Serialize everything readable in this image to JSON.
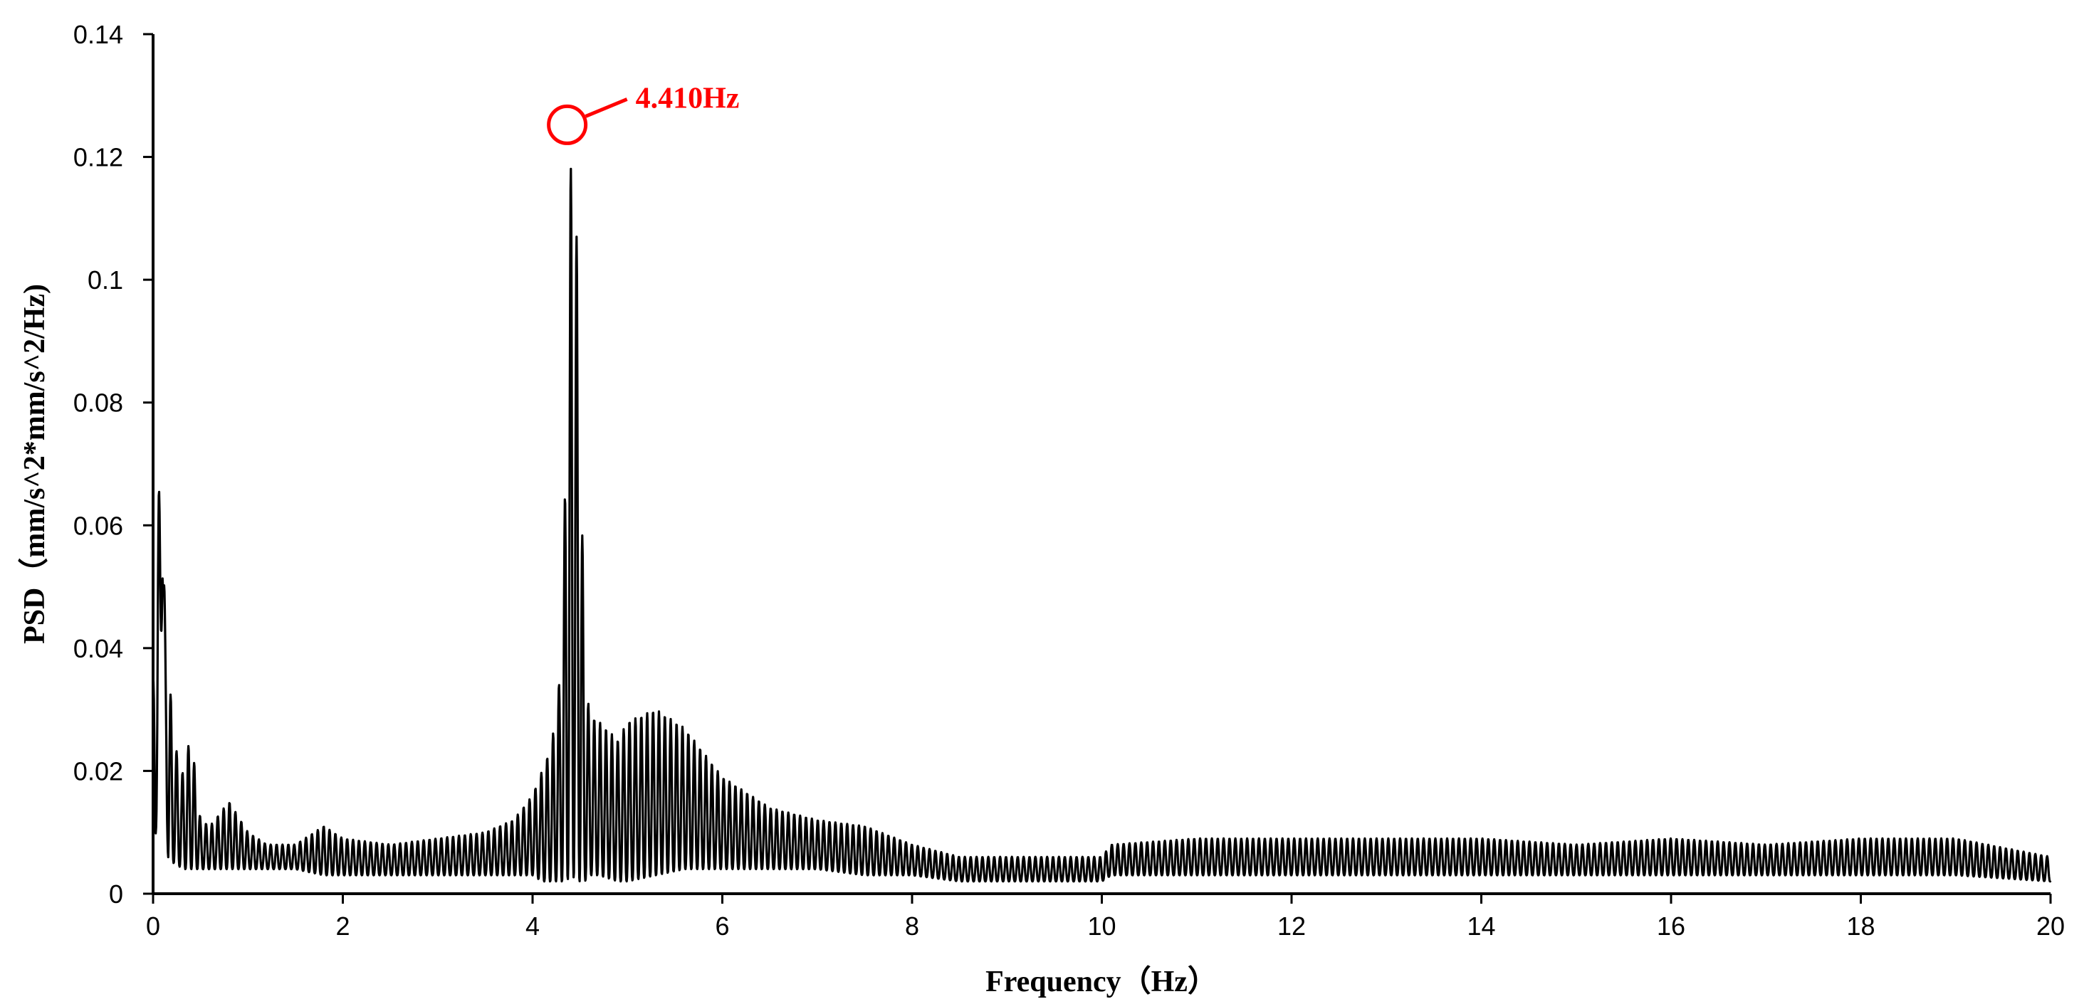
{
  "chart_data": {
    "type": "line",
    "title": "",
    "xlabel": "Frequency（Hz）",
    "ylabel": "PSD（mm/s^2*mm/s^2/Hz)",
    "xlim": [
      0,
      20
    ],
    "ylim": [
      0,
      0.14
    ],
    "x_ticks": [
      "0",
      "2",
      "4",
      "6",
      "8",
      "10",
      "12",
      "14",
      "16",
      "18",
      "20"
    ],
    "y_ticks": [
      "0",
      "0.02",
      "0.04",
      "0.06",
      "0.08",
      "0.1",
      "0.12",
      "0.14"
    ],
    "grid": false,
    "legend": "none",
    "series": [
      {
        "color": "#000000",
        "envelope": {
          "x": [
            0,
            0.05,
            0.1,
            0.13,
            0.16,
            0.2,
            0.25,
            0.3,
            0.4,
            0.5,
            0.6,
            0.8,
            1.0,
            1.2,
            1.5,
            1.8,
            2.0,
            2.5,
            3.0,
            3.5,
            3.8,
            4.0,
            4.1,
            4.2,
            4.3,
            4.35,
            4.41,
            4.47,
            4.55,
            4.6,
            4.7,
            4.9,
            5.0,
            5.3,
            5.6,
            6.0,
            6.5,
            7.0,
            7.5,
            8.0,
            8.5,
            9.0,
            9.5,
            10.0,
            10.1,
            11.0,
            12.0,
            13.0,
            14.0,
            15.0,
            16.0,
            17.0,
            18.0,
            19.0,
            20.0
          ],
          "upper": [
            0.034,
            0.064,
            0.071,
            0.04,
            0.04,
            0.028,
            0.023,
            0.019,
            0.026,
            0.012,
            0.011,
            0.015,
            0.01,
            0.008,
            0.008,
            0.011,
            0.009,
            0.008,
            0.009,
            0.01,
            0.012,
            0.016,
            0.02,
            0.024,
            0.037,
            0.071,
            0.125,
            0.105,
            0.037,
            0.029,
            0.028,
            0.025,
            0.028,
            0.03,
            0.027,
            0.019,
            0.014,
            0.012,
            0.011,
            0.008,
            0.006,
            0.006,
            0.006,
            0.006,
            0.008,
            0.009,
            0.009,
            0.009,
            0.009,
            0.008,
            0.009,
            0.008,
            0.009,
            0.009,
            0.006
          ],
          "lower": [
            0.0,
            0.017,
            0.05,
            0.018,
            0.005,
            0.005,
            0.005,
            0.004,
            0.004,
            0.004,
            0.004,
            0.004,
            0.004,
            0.004,
            0.004,
            0.003,
            0.003,
            0.003,
            0.003,
            0.003,
            0.003,
            0.003,
            0.002,
            0.002,
            0.002,
            0.002,
            0.003,
            0.002,
            0.002,
            0.003,
            0.003,
            0.002,
            0.002,
            0.003,
            0.004,
            0.004,
            0.004,
            0.004,
            0.003,
            0.003,
            0.002,
            0.002,
            0.002,
            0.002,
            0.003,
            0.003,
            0.003,
            0.003,
            0.003,
            0.003,
            0.003,
            0.003,
            0.003,
            0.003,
            0.002
          ]
        },
        "oscillation_period_hz": 0.062
      }
    ],
    "peak": {
      "x": 4.41,
      "y": 0.125,
      "label": "4.410Hz",
      "color": "#ff0000"
    }
  }
}
